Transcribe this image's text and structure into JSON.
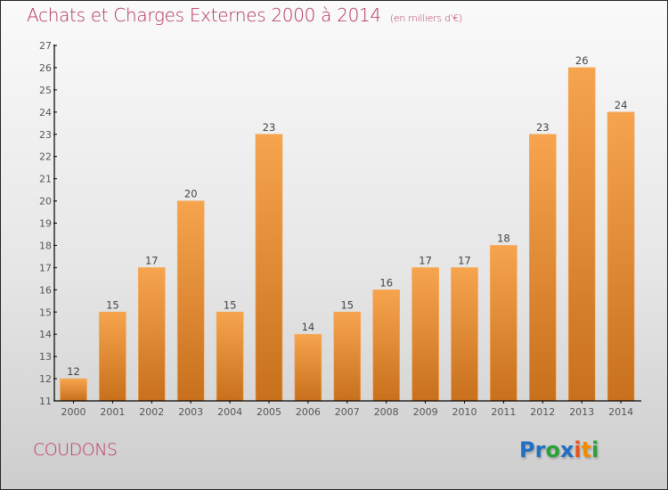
{
  "header": {
    "title": "Achats et Charges Externes 2000 à 2014",
    "subtitle": "(en milliers d'€)"
  },
  "footer": {
    "commune": "COUDONS",
    "logo": {
      "letters": [
        {
          "ch": "P",
          "color": "#1f6fc4"
        },
        {
          "ch": "r",
          "color": "#1f6fc4"
        },
        {
          "ch": "o",
          "color": "#2aa038"
        },
        {
          "ch": "x",
          "color": "#1f6fc4"
        },
        {
          "ch": "i",
          "color": "#e8511c"
        },
        {
          "ch": "t",
          "color": "#f08c00"
        },
        {
          "ch": "i",
          "color": "#2aa038"
        }
      ]
    }
  },
  "colors": {
    "title": "#b3325f",
    "bar_top": "#f7a44e",
    "bar_bottom": "#c8701c",
    "axis": "#000000"
  },
  "chart_data": {
    "type": "bar",
    "title": "Achats et Charges Externes 2000 à 2014",
    "subtitle": "(en milliers d'€)",
    "xlabel": "",
    "ylabel": "",
    "categories": [
      "2000",
      "2001",
      "2002",
      "2003",
      "2004",
      "2005",
      "2006",
      "2007",
      "2008",
      "2009",
      "2010",
      "2011",
      "2012",
      "2013",
      "2014"
    ],
    "values": [
      12,
      15,
      17,
      20,
      15,
      23,
      14,
      15,
      16,
      17,
      17,
      18,
      23,
      26,
      24
    ],
    "ylim": [
      11,
      27
    ],
    "yticks": [
      11,
      12,
      13,
      14,
      15,
      16,
      17,
      18,
      19,
      20,
      21,
      22,
      23,
      24,
      25,
      26,
      27
    ],
    "grid": false,
    "legend": "none",
    "data_labels": true
  }
}
